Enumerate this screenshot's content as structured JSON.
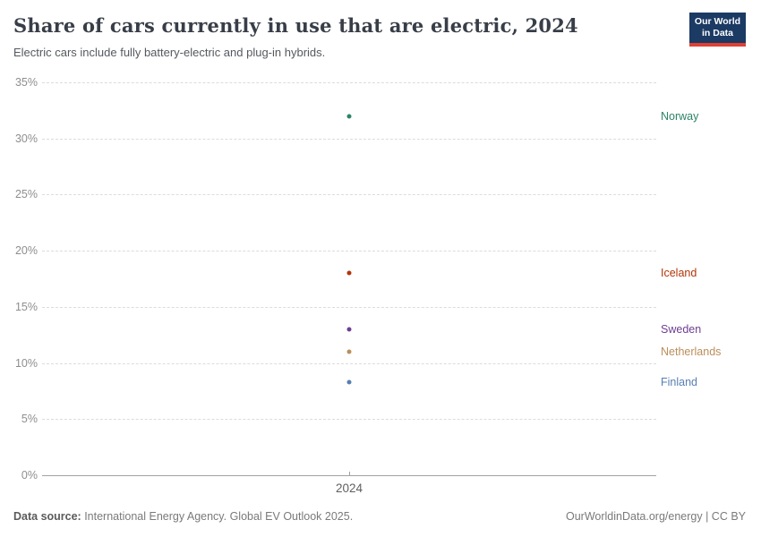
{
  "header": {
    "title": "Share of cars currently in use that are electric, 2024",
    "subtitle": "Electric cars include fully battery-electric and plug-in hybrids.",
    "logo_line1": "Our World",
    "logo_line2": "in Data",
    "logo_bg": "#1b3a64",
    "logo_accent": "#e04034"
  },
  "chart_data": {
    "type": "scatter",
    "title": "Share of cars currently in use that are electric, 2024",
    "xlabel": "",
    "ylabel": "",
    "x": [
      2024
    ],
    "x_tick_labels": [
      "2024"
    ],
    "ylim": [
      0,
      35
    ],
    "y_ticks": [
      0,
      5,
      10,
      15,
      20,
      25,
      30,
      35
    ],
    "y_tick_labels": [
      "0%",
      "5%",
      "10%",
      "15%",
      "20%",
      "25%",
      "30%",
      "35%"
    ],
    "grid": "horizontal-dashed",
    "legend_position": "right-of-points",
    "series": [
      {
        "name": "Norway",
        "year": 2024,
        "value": 32.0,
        "color": "#2C8465"
      },
      {
        "name": "Iceland",
        "year": 2024,
        "value": 18.0,
        "color": "#B13507"
      },
      {
        "name": "Sweden",
        "year": 2024,
        "value": 13.0,
        "color": "#6D3E91"
      },
      {
        "name": "Netherlands",
        "year": 2024,
        "value": 11.0,
        "color": "#BC8E5A"
      },
      {
        "name": "Finland",
        "year": 2024,
        "value": 8.3,
        "color": "#577EB4"
      }
    ]
  },
  "footer": {
    "source_label": "Data source:",
    "source_text": " International Energy Agency. Global EV Outlook 2025.",
    "credit": "OurWorldinData.org/energy | CC BY"
  }
}
